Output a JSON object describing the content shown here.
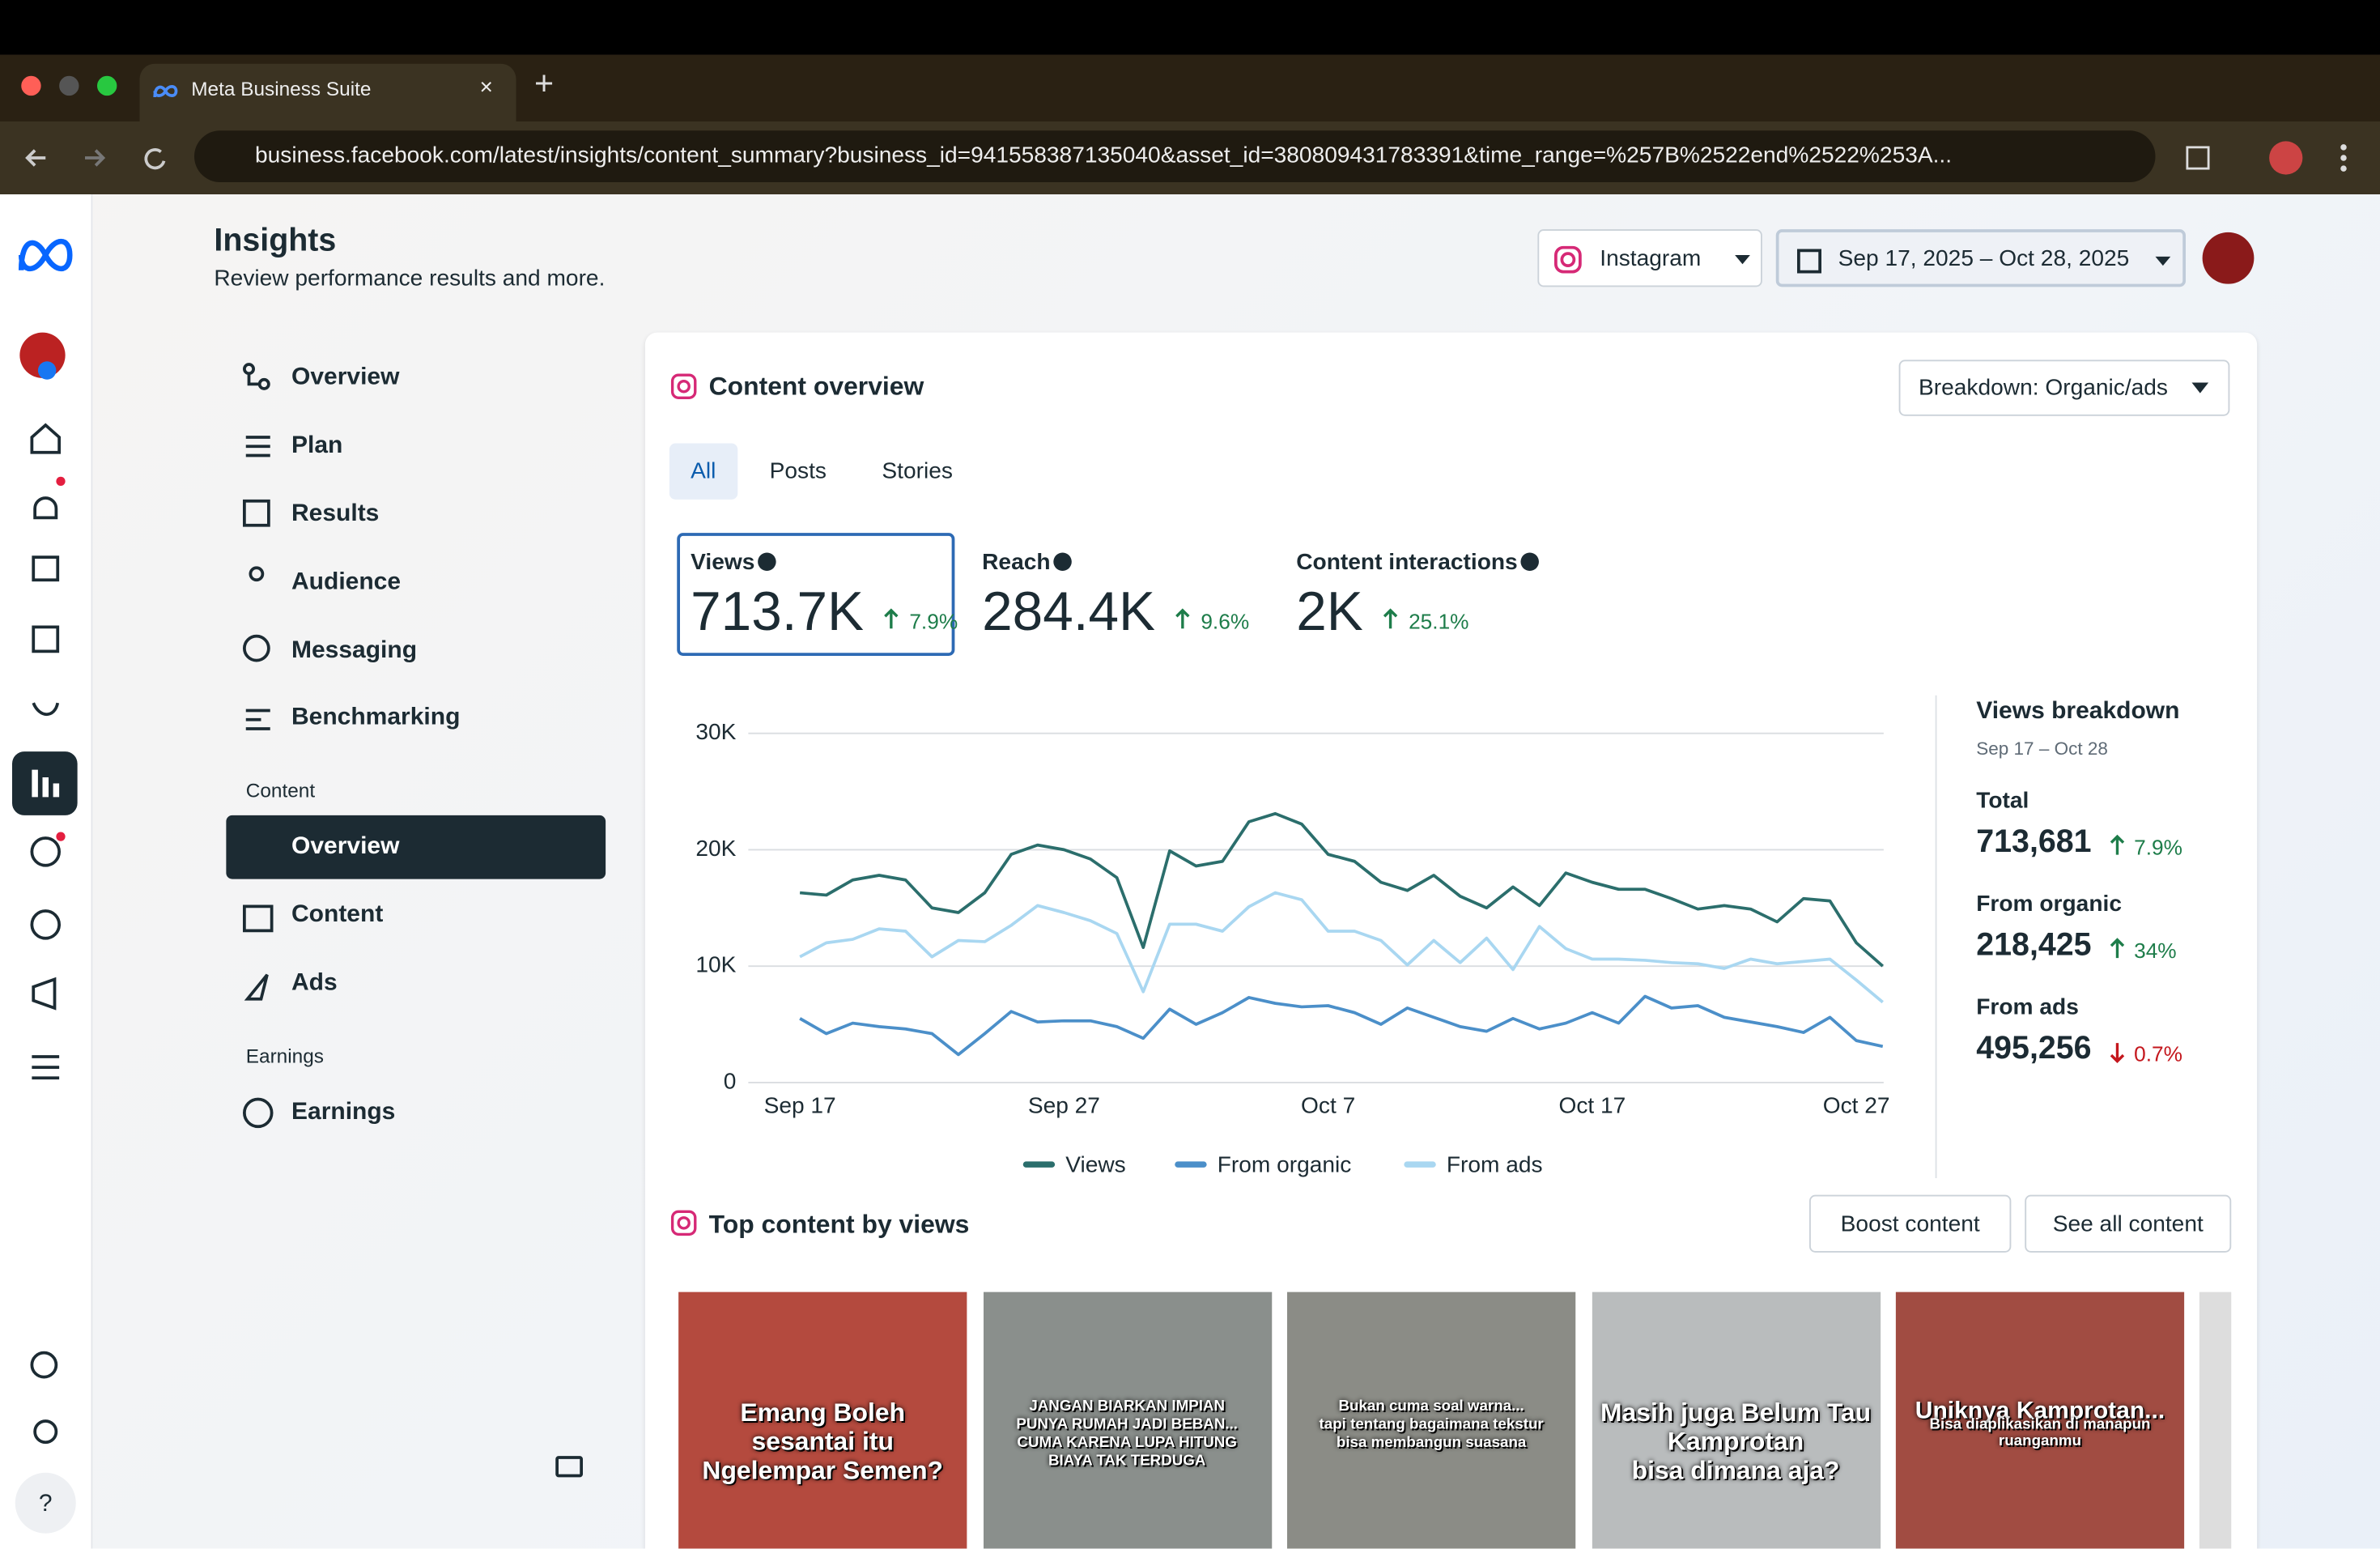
{
  "browser": {
    "tab_title": "Meta Business Suite",
    "url": "business.facebook.com/latest/insights/content_summary?business_id=941558387135040&asset_id=380809431783391&time_range=%257B%2522end%2522%253A..."
  },
  "header": {
    "title": "Insights",
    "subtitle": "Review performance results and more.",
    "platform": "Instagram",
    "date_range": "Sep 17, 2025 – Oct 28, 2025"
  },
  "nav": {
    "items": [
      "Overview",
      "Plan",
      "Results",
      "Audience",
      "Messaging",
      "Benchmarking"
    ],
    "content_heading": "Content",
    "content_items": [
      "Overview",
      "Content",
      "Ads"
    ],
    "earnings_heading": "Earnings",
    "earnings_items": [
      "Earnings"
    ]
  },
  "overview": {
    "title": "Content overview",
    "breakdown": "Breakdown: Organic/ads",
    "tabs": [
      "All",
      "Posts",
      "Stories"
    ],
    "metrics": [
      {
        "label": "Views",
        "value": "713.7K",
        "change": "7.9%"
      },
      {
        "label": "Reach",
        "value": "284.4K",
        "change": "9.6%"
      },
      {
        "label": "Content interactions",
        "value": "2K",
        "change": "25.1%"
      }
    ]
  },
  "chart_data": {
    "type": "line",
    "categories": [
      "Sep 17",
      null,
      null,
      null,
      null,
      null,
      null,
      null,
      null,
      null,
      "Sep 27",
      null,
      null,
      null,
      null,
      null,
      null,
      null,
      null,
      null,
      "Oct 7",
      null,
      null,
      null,
      null,
      null,
      null,
      null,
      null,
      null,
      "Oct 17",
      null,
      null,
      null,
      null,
      null,
      null,
      null,
      null,
      null,
      "Oct 27",
      null
    ],
    "series": [
      {
        "name": "Views",
        "color": "#2b6e6c",
        "values": [
          16300,
          16100,
          17400,
          17800,
          17400,
          15000,
          14600,
          16300,
          19600,
          20400,
          20000,
          19200,
          17600,
          11600,
          19900,
          18600,
          19000,
          22400,
          23100,
          22200,
          19600,
          19000,
          17200,
          16500,
          17800,
          16000,
          15000,
          16800,
          15200,
          18000,
          17200,
          16600,
          16600,
          15800,
          14900,
          15200,
          14900,
          13800,
          15800,
          15600,
          12000,
          10000
        ]
      },
      {
        "name": "From organic",
        "color": "#4b8fc9",
        "values": [
          5500,
          4200,
          5100,
          4800,
          4600,
          4200,
          2400,
          4200,
          6100,
          5200,
          5300,
          5300,
          4800,
          3800,
          6300,
          5000,
          6000,
          7300,
          6800,
          6500,
          6600,
          6000,
          5000,
          6400,
          5600,
          4800,
          4400,
          5500,
          4600,
          5100,
          6000,
          5100,
          7400,
          6400,
          6600,
          5600,
          5200,
          4800,
          4300,
          5600,
          3600,
          3100
        ]
      },
      {
        "name": "From ads",
        "color": "#a9d7f1",
        "values": [
          10800,
          12000,
          12300,
          13200,
          13000,
          10800,
          12200,
          12100,
          13500,
          15200,
          14600,
          13900,
          12800,
          7800,
          13600,
          13600,
          13000,
          15100,
          16300,
          15700,
          13000,
          13000,
          12200,
          10100,
          12200,
          10300,
          12400,
          9700,
          13400,
          11500,
          10600,
          10600,
          10500,
          10300,
          10200,
          9800,
          10600,
          10200,
          10400,
          10600,
          8800,
          6900
        ]
      }
    ],
    "ylim": [
      0,
      30000
    ],
    "yticks": [
      0,
      {
        "value": 10000,
        "label": "10K"
      },
      {
        "value": 20000,
        "label": "20K"
      },
      {
        "value": 30000,
        "label": "30K"
      }
    ],
    "grid": true,
    "legend": "bottom"
  },
  "breakdown_panel": {
    "title": "Views breakdown",
    "period": "Sep 17 – Oct 28",
    "rows": [
      {
        "label": "Total",
        "value": "713,681",
        "change": "7.9%",
        "direction": "up"
      },
      {
        "label": "From organic",
        "value": "218,425",
        "change": "34%",
        "direction": "up"
      },
      {
        "label": "From ads",
        "value": "495,256",
        "change": "0.7%",
        "direction": "down"
      }
    ]
  },
  "top_content": {
    "title": "Top content by views",
    "buttons": [
      "Boost content",
      "See all content"
    ],
    "thumbnails": [
      [
        "Emang Boleh",
        "sesantai itu",
        "Ngelempar Semen?"
      ],
      [
        "JANGAN BIARKAN IMPIAN",
        "PUNYA RUMAH JADI BEBAN...",
        "CUMA KARENA LUPA HITUNG",
        "BIAYA TAK TERDUGA"
      ],
      [
        "Bukan cuma soal warna...",
        "tapi tentang bagaimana tekstur",
        "bisa membangun suasana"
      ],
      [
        "Masih juga Belum Tau",
        "Kamprotan",
        "bisa dimana aja?"
      ],
      [
        "Uniknya Kamprotan...",
        "Bisa diaplikasikan di manapun ruanganmu"
      ]
    ]
  }
}
